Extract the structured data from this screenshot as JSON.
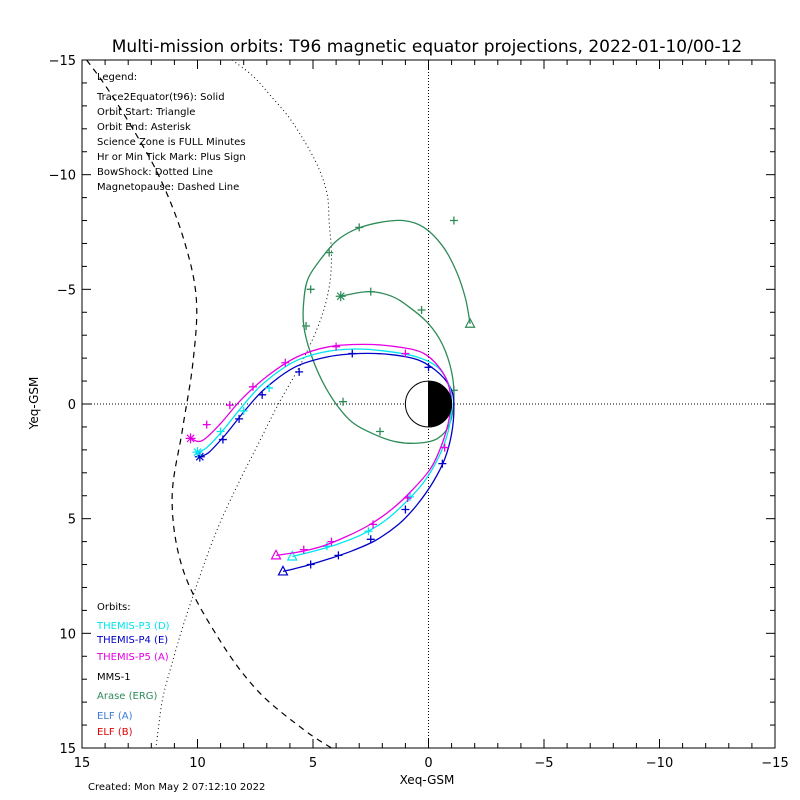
{
  "chart_data": {
    "type": "line",
    "title": "Multi-mission orbits: T96 magnetic equator projections, 2022-01-10/00-12",
    "xlabel": "Xeq-GSM",
    "ylabel": "Yeq-GSM",
    "xlim": [
      15,
      -15
    ],
    "ylim": [
      -15,
      15
    ],
    "x_ticks": [
      15,
      10,
      5,
      0,
      -5,
      -10,
      -15
    ],
    "y_ticks": [
      -15,
      -10,
      -5,
      0,
      5,
      10,
      15
    ],
    "legend": {
      "heading": "Legend:",
      "lines": [
        "Trace2Equator(t96): Solid",
        "Orbit Start: Triangle",
        "Orbit End: Asterisk",
        "Science Zone is FULL Minutes",
        "Hr or Min Tick Mark: Plus Sign",
        "BowShock: Dotted Line",
        "Magnetopause: Dashed Line"
      ]
    },
    "orbits_heading": "Orbits:",
    "orbit_labels": [
      {
        "text": "THEMIS-P3 (D)",
        "color": "#00e5ee"
      },
      {
        "text": "THEMIS-P4 (E)",
        "color": "#0000c8"
      },
      {
        "text": "THEMIS-P5 (A)",
        "color": "#e600e6"
      },
      {
        "text": "MMS-1",
        "color": "#000000"
      },
      {
        "text": "Arase (ERG)",
        "color": "#2e8b57"
      },
      {
        "text": "ELF (A)",
        "color": "#3a7bd5"
      },
      {
        "text": "ELF (B)",
        "color": "#e00000"
      }
    ],
    "created": "Created: Mon May  2 07:12:10 2022",
    "series": [
      {
        "color": "#2e8b57",
        "points": [
          [
            -1.8,
            -3.5
          ],
          [
            -1.6,
            -4.6
          ],
          [
            -1.2,
            -5.8
          ],
          [
            -0.6,
            -6.9
          ],
          [
            0.2,
            -7.7
          ],
          [
            1.1,
            -8.0
          ],
          [
            2.2,
            -7.9
          ],
          [
            3.2,
            -7.6
          ],
          [
            4.0,
            -7.1
          ],
          [
            4.6,
            -6.4
          ],
          [
            5.2,
            -5.5
          ],
          [
            5.4,
            -4.5
          ],
          [
            5.4,
            -3.4
          ],
          [
            5.1,
            -2.2
          ],
          [
            4.6,
            -1.0
          ],
          [
            4.0,
            0.0
          ],
          [
            3.3,
            0.8
          ],
          [
            2.4,
            1.3
          ],
          [
            1.4,
            1.65
          ],
          [
            0.4,
            1.7
          ],
          [
            -0.4,
            1.5
          ],
          [
            -0.9,
            0.9
          ],
          [
            -1.1,
            -0.2
          ],
          [
            -1.0,
            -1.4
          ],
          [
            -0.6,
            -2.6
          ],
          [
            0.0,
            -3.5
          ],
          [
            0.8,
            -4.2
          ],
          [
            1.6,
            -4.7
          ],
          [
            2.6,
            -4.9
          ],
          [
            3.8,
            -4.7
          ]
        ],
        "ticks": [
          [
            -1.1,
            -8.0
          ],
          [
            3.0,
            -7.7
          ],
          [
            4.3,
            -6.6
          ],
          [
            5.1,
            -5.0
          ],
          [
            5.3,
            -3.4
          ],
          [
            3.7,
            -0.1
          ],
          [
            2.1,
            1.2
          ],
          [
            -1.1,
            -0.6
          ],
          [
            0.3,
            -4.1
          ],
          [
            2.5,
            -4.9
          ]
        ],
        "start": [
          -1.8,
          -3.5
        ],
        "end": [
          3.8,
          -4.7
        ]
      },
      {
        "color": "#0000c8",
        "points": [
          [
            6.3,
            7.3
          ],
          [
            5.3,
            7.05
          ],
          [
            4.3,
            6.75
          ],
          [
            3.3,
            6.4
          ],
          [
            2.3,
            5.95
          ],
          [
            1.3,
            5.25
          ],
          [
            0.5,
            4.4
          ],
          [
            -0.2,
            3.4
          ],
          [
            -0.7,
            2.4
          ],
          [
            -1.0,
            1.3
          ],
          [
            -1.1,
            0.2
          ],
          [
            -1.0,
            -0.6
          ],
          [
            -0.5,
            -1.3
          ],
          [
            0.4,
            -1.9
          ],
          [
            1.6,
            -2.15
          ],
          [
            3.0,
            -2.2
          ],
          [
            4.4,
            -2.05
          ],
          [
            5.8,
            -1.6
          ],
          [
            7.1,
            -0.65
          ],
          [
            8.0,
            0.35
          ],
          [
            8.8,
            1.35
          ],
          [
            9.5,
            2.1
          ],
          [
            9.9,
            2.3
          ]
        ],
        "ticks": [
          [
            5.1,
            7.0
          ],
          [
            3.9,
            6.6
          ],
          [
            2.5,
            5.9
          ],
          [
            1.0,
            4.6
          ],
          [
            -0.6,
            2.6
          ],
          [
            0.0,
            -1.6
          ],
          [
            3.3,
            -2.2
          ],
          [
            5.6,
            -1.4
          ],
          [
            7.2,
            -0.4
          ],
          [
            8.2,
            0.65
          ],
          [
            8.9,
            1.55
          ]
        ],
        "start": [
          6.3,
          7.3
        ],
        "end": [
          9.9,
          2.3
        ]
      },
      {
        "color": "#00e5ee",
        "points": [
          [
            5.9,
            6.65
          ],
          [
            4.9,
            6.4
          ],
          [
            3.9,
            6.1
          ],
          [
            2.9,
            5.7
          ],
          [
            1.9,
            5.1
          ],
          [
            1.0,
            4.3
          ],
          [
            0.2,
            3.4
          ],
          [
            -0.45,
            2.3
          ],
          [
            -0.85,
            1.2
          ],
          [
            -1.0,
            0.1
          ],
          [
            -0.9,
            -0.8
          ],
          [
            -0.4,
            -1.6
          ],
          [
            0.5,
            -2.05
          ],
          [
            1.8,
            -2.3
          ],
          [
            3.2,
            -2.4
          ],
          [
            4.6,
            -2.25
          ],
          [
            5.9,
            -1.8
          ],
          [
            7.2,
            -0.85
          ],
          [
            8.1,
            0.15
          ],
          [
            8.9,
            1.15
          ],
          [
            9.6,
            1.9
          ],
          [
            10.0,
            2.1
          ]
        ],
        "ticks": [
          [
            4.4,
            6.2
          ],
          [
            2.6,
            5.55
          ],
          [
            0.8,
            4.05
          ],
          [
            6.9,
            -0.7
          ],
          [
            8.0,
            0.3
          ],
          [
            9.0,
            1.2
          ]
        ],
        "start": [
          5.9,
          6.65
        ],
        "end": [
          10.0,
          2.1
        ]
      },
      {
        "color": "#e600e6",
        "points": [
          [
            6.6,
            6.6
          ],
          [
            5.6,
            6.45
          ],
          [
            4.6,
            6.2
          ],
          [
            3.6,
            5.8
          ],
          [
            2.6,
            5.3
          ],
          [
            1.6,
            4.6
          ],
          [
            0.7,
            3.75
          ],
          [
            -0.1,
            2.8
          ],
          [
            -0.6,
            1.7
          ],
          [
            -0.9,
            0.6
          ],
          [
            -0.95,
            -0.45
          ],
          [
            -0.6,
            -1.4
          ],
          [
            0.2,
            -2.2
          ],
          [
            1.4,
            -2.5
          ],
          [
            2.8,
            -2.6
          ],
          [
            4.3,
            -2.5
          ],
          [
            5.7,
            -2.05
          ],
          [
            7.0,
            -1.2
          ],
          [
            8.1,
            -0.2
          ],
          [
            9.0,
            0.85
          ],
          [
            9.8,
            1.6
          ],
          [
            10.3,
            1.5
          ]
        ],
        "ticks": [
          [
            5.4,
            6.35
          ],
          [
            4.2,
            6.0
          ],
          [
            2.4,
            5.25
          ],
          [
            0.9,
            4.1
          ],
          [
            -0.7,
            1.9
          ],
          [
            1.0,
            -2.2
          ],
          [
            4.0,
            -2.5
          ],
          [
            6.2,
            -1.8
          ],
          [
            7.6,
            -0.75
          ],
          [
            8.6,
            0.05
          ],
          [
            9.6,
            0.9
          ]
        ],
        "start": [
          6.6,
          6.6
        ],
        "end": [
          10.3,
          1.5
        ]
      }
    ],
    "magnetopause": [
      [
        14.8,
        -15
      ],
      [
        14.0,
        -13.9
      ],
      [
        12.8,
        -12.0
      ],
      [
        11.6,
        -9.8
      ],
      [
        10.6,
        -7.2
      ],
      [
        10.05,
        -4.6
      ],
      [
        10.2,
        -1.8
      ],
      [
        10.65,
        1.1
      ],
      [
        11.1,
        4.2
      ],
      [
        10.6,
        7.3
      ],
      [
        9.1,
        10.2
      ],
      [
        7.4,
        12.5
      ],
      [
        5.4,
        14.2
      ],
      [
        4.2,
        15
      ]
    ],
    "bowshock": [
      [
        8.5,
        -15
      ],
      [
        7.6,
        -14.3
      ],
      [
        6.8,
        -13.4
      ],
      [
        5.9,
        -12.3
      ],
      [
        4.9,
        -10.6
      ],
      [
        4.4,
        -9.2
      ],
      [
        4.3,
        -7.9
      ],
      [
        4.2,
        -6.5
      ],
      [
        4.3,
        -5.1
      ],
      [
        4.7,
        -3.6
      ],
      [
        5.5,
        -1.8
      ],
      [
        6.5,
        0.0
      ],
      [
        7.4,
        1.8
      ],
      [
        8.3,
        3.6
      ],
      [
        9.2,
        5.6
      ],
      [
        10.0,
        7.8
      ],
      [
        10.6,
        9.6
      ],
      [
        11.1,
        11.3
      ],
      [
        11.5,
        12.8
      ],
      [
        11.7,
        14.2
      ],
      [
        11.8,
        15
      ]
    ]
  }
}
